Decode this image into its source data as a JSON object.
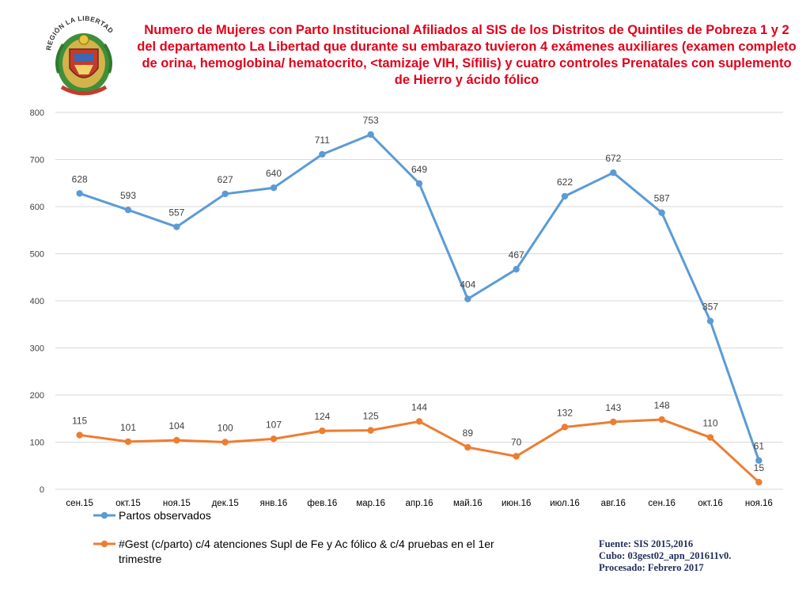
{
  "title": "Numero de Mujeres con Parto Institucional  Afiliados al SIS de los Distritos de Quintiles de Pobreza 1 y 2  del departamento La Libertad que durante su embarazo tuvieron 4 exámenes auxiliares (examen completo de orina, hemoglobina/ hematocrito, <tamizaje VIH, Sífilis) y cuatro controles Prenatales con suplemento de Hierro y ácido fólico",
  "logo": {
    "text": "REGIÓN LA LIBERTAD"
  },
  "source": {
    "line1": "Fuente: SIS 2015,2016",
    "line2": "Cubo: 03gest02_apn_201611v0.",
    "line3": "Procesado: Febrero 2017"
  },
  "colors": {
    "title": "#e3001b",
    "series1": "#5b9bd5",
    "series2": "#ed7d31",
    "grid": "#d9d9d9",
    "labels": "#404040",
    "source": "#1f2d5c"
  },
  "chart_data": {
    "type": "line",
    "categories": [
      "сен.15",
      "окт.15",
      "ноя.15",
      "дек.15",
      "янв.16",
      "фев.16",
      "мар.16",
      "апр.16",
      "май.16",
      "июн.16",
      "июл.16",
      "авг.16",
      "сен.16",
      "окт.16",
      "ноя.16"
    ],
    "series": [
      {
        "name": "Partos observados",
        "values": [
          628,
          593,
          557,
          627,
          640,
          711,
          753,
          649,
          404,
          467,
          622,
          672,
          587,
          357,
          61
        ]
      },
      {
        "name": "#Gest (c/parto) c/4 atenciones Supl de Fe y Ac fólico & c/4 pruebas en el 1er trimestre",
        "values": [
          115,
          101,
          104,
          100,
          107,
          124,
          125,
          144,
          89,
          70,
          132,
          143,
          148,
          110,
          15
        ]
      }
    ],
    "ylim": [
      0,
      800
    ],
    "yticks": [
      0,
      100,
      200,
      300,
      400,
      500,
      600,
      700,
      800
    ],
    "grid": true,
    "legend_position": "bottom-left"
  }
}
